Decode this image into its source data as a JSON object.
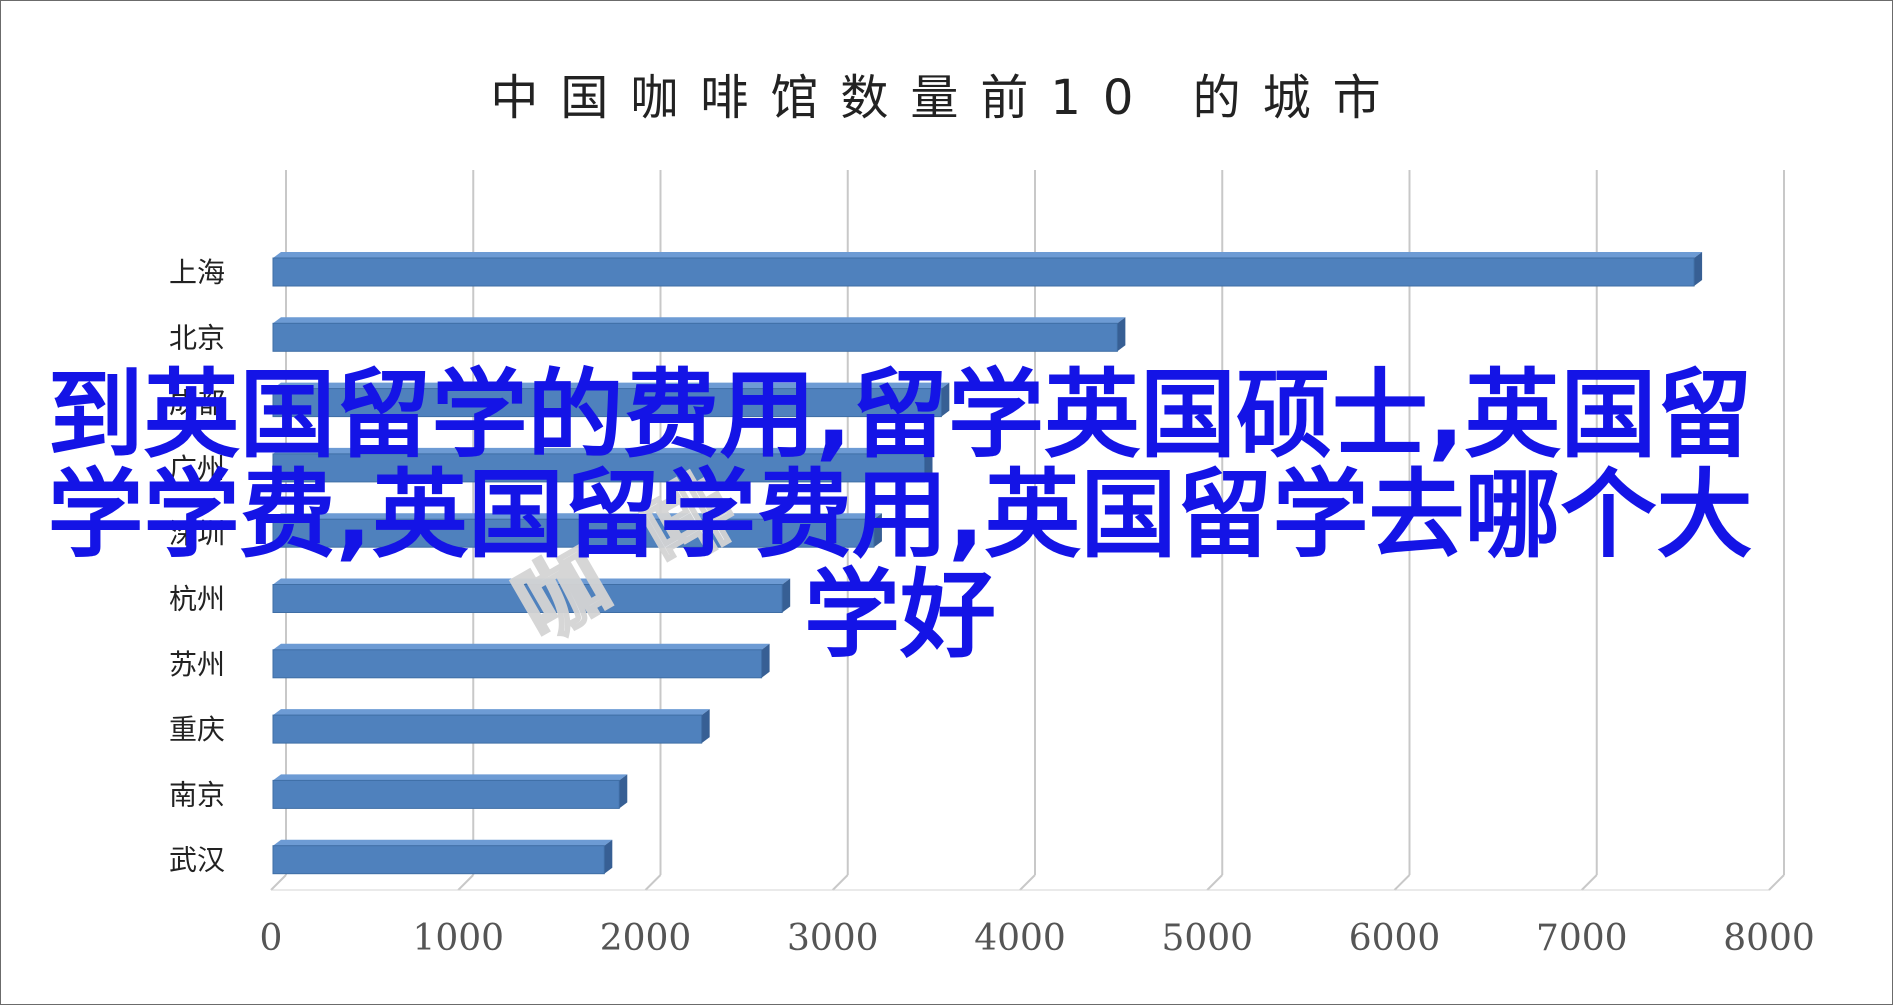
{
  "chart_data": {
    "type": "bar",
    "orientation": "horizontal",
    "title": "中国咖啡馆数量前10 的城市",
    "categories": [
      "上海",
      "北京",
      "成都",
      "广州",
      "深圳",
      "杭州",
      "苏州",
      "重庆",
      "南京",
      "武汉"
    ],
    "values": [
      7600,
      4520,
      3580,
      3490,
      3220,
      2730,
      2620,
      2300,
      1860,
      1780
    ],
    "xlabel": "",
    "ylabel": "",
    "xlim": [
      0,
      8000
    ],
    "xticks": [
      "0",
      "1000",
      "2000",
      "3000",
      "4000",
      "5000",
      "6000",
      "7000",
      "8000"
    ],
    "grid": true,
    "legend": "none",
    "bar_color": "#4f81bd",
    "bar_top_color": "#6d9bd4",
    "bar_side_color": "#375f94"
  },
  "overlay": {
    "text": "到英国留学的费用,留学英国硕士,英国留学学费,英国留学费用,英国留学去哪个大学好",
    "color": "#1414e6"
  },
  "watermark": {
    "text": "咖啡"
  }
}
